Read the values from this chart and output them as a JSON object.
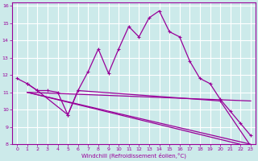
{
  "xlabel": "Windchill (Refroidissement éolien,°C)",
  "bg_color": "#cceaea",
  "grid_color": "#ffffff",
  "line_color": "#990099",
  "xlim": [
    -0.5,
    23.5
  ],
  "ylim": [
    8,
    16.2
  ],
  "xticks": [
    0,
    1,
    2,
    3,
    4,
    5,
    6,
    7,
    8,
    9,
    10,
    11,
    12,
    13,
    14,
    15,
    16,
    17,
    18,
    19,
    20,
    21,
    22,
    23
  ],
  "yticks": [
    8,
    9,
    10,
    11,
    12,
    13,
    14,
    15,
    16
  ],
  "line1_x": [
    0,
    1,
    2,
    3,
    4,
    5,
    6,
    7,
    8,
    9,
    10,
    11,
    12,
    13,
    14,
    15,
    16,
    17,
    18,
    19,
    20,
    21,
    22,
    23
  ],
  "line1_y": [
    11.8,
    11.5,
    11.1,
    11.1,
    11.0,
    9.7,
    11.1,
    12.2,
    13.5,
    12.1,
    13.5,
    14.8,
    14.2,
    15.3,
    15.7,
    14.5,
    14.2,
    12.8,
    11.8,
    11.5,
    10.6,
    9.9,
    9.2,
    8.5
  ],
  "line2_x": [
    1,
    2,
    5,
    6,
    20,
    23
  ],
  "line2_y": [
    11.5,
    11.1,
    9.7,
    11.1,
    10.5,
    7.9
  ],
  "line3_x": [
    1,
    23
  ],
  "line3_y": [
    11.0,
    10.5
  ],
  "line4_x": [
    1,
    23
  ],
  "line4_y": [
    11.0,
    8.0
  ],
  "line5_x": [
    1,
    23
  ],
  "line5_y": [
    11.0,
    7.85
  ],
  "tick_fontsize": 4.5,
  "xlabel_fontsize": 5.0
}
